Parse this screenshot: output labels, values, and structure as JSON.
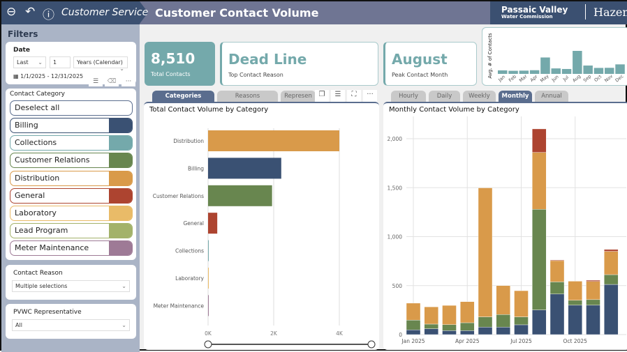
{
  "header": {
    "breadcrumb": "Customer Service",
    "title": "Customer Contact Volume",
    "logo_text": "Passaic Valley",
    "logo_sub": "Water Commission",
    "partner": "Hazen"
  },
  "filters": {
    "title": "Filters",
    "date": {
      "label": "Date",
      "relative": "Last",
      "count": "1",
      "unit": "Years (Calendar)",
      "range": "1/1/2025 - 12/31/2025"
    },
    "category": {
      "label": "Contact Category",
      "deselect": "Deselect all",
      "items": [
        {
          "label": "Billing",
          "color": "#3a5173"
        },
        {
          "label": "Collections",
          "color": "#74a9ab"
        },
        {
          "label": "Customer Relations",
          "color": "#68864f"
        },
        {
          "label": "Distribution",
          "color": "#d99a4a"
        },
        {
          "label": "General",
          "color": "#ad4430"
        },
        {
          "label": "Laboratory",
          "color": "#e9bb68"
        },
        {
          "label": "Lead Program",
          "color": "#a3b26a"
        },
        {
          "label": "Meter Maintenance",
          "color": "#9e7a96"
        }
      ]
    },
    "reason": {
      "label": "Contact Reason",
      "value": "Multiple selections"
    },
    "rep": {
      "label": "PVWC Representative",
      "value": "All"
    }
  },
  "kpis": [
    {
      "value": "8,510",
      "caption": "Total Contacts"
    },
    {
      "value": "Dead Line",
      "caption": "Top Contact Reason"
    },
    {
      "value": "August",
      "caption": "Peak Contact Month"
    }
  ],
  "left_tabs": [
    "Categories",
    "Reasons",
    "Represen"
  ],
  "right_tabs": [
    "Hourly",
    "Daily",
    "Weekly",
    "Monthly",
    "Annual"
  ],
  "active_left_tab": "Categories",
  "active_right_tab": "Monthly",
  "chart_data": [
    {
      "type": "bar",
      "title": "",
      "ylabel": "Avg. # of Contacts",
      "categories": [
        "Jan",
        "Feb",
        "Mar",
        "Apr",
        "May",
        "Jun",
        "Jul",
        "Aug",
        "Sep",
        "Oct",
        "Nov",
        "Dec"
      ],
      "values": [
        321,
        283,
        298,
        336,
        1498,
        500,
        448,
        2100,
        762,
        545,
        555,
        869
      ],
      "color": "#74a9ab"
    },
    {
      "type": "bar",
      "orientation": "horizontal",
      "title": "Total Contact Volume by Category",
      "categories": [
        "Distribution",
        "Billing",
        "Customer Relations",
        "General",
        "Collections",
        "Laboratory",
        "Meter Maintenance"
      ],
      "values": [
        4000,
        2230,
        1950,
        280,
        10,
        10,
        10
      ],
      "colors": [
        "#d99a4a",
        "#3a5173",
        "#68864f",
        "#ad4430",
        "#74a9ab",
        "#e9bb68",
        "#9e7a96"
      ],
      "xticks": [
        "0K",
        "2K",
        "4K"
      ],
      "xlim": [
        0,
        4000
      ],
      "grid": true
    },
    {
      "type": "bar",
      "stacked": true,
      "title": "Monthly Contact Volume by Category",
      "x": [
        "Jan 2025",
        "Feb 2025",
        "Mar 2025",
        "Apr 2025",
        "May 2025",
        "Jun 2025",
        "Jul 2025",
        "Aug 2025",
        "Sep 2025",
        "Oct 2025",
        "Nov 2025",
        "Dec 2025"
      ],
      "xticks": [
        "Jan 2025",
        "Apr 2025",
        "Jul 2025",
        "Oct 2025"
      ],
      "yticks": [
        "0",
        "500",
        "1,000",
        "1,500",
        "2,000"
      ],
      "ylim": [
        0,
        2200
      ],
      "grid": true,
      "series": [
        {
          "name": "Billing",
          "color": "#3a5173",
          "values": [
            48,
            60,
            40,
            40,
            76,
            76,
            100,
            252,
            414,
            300,
            300,
            512
          ]
        },
        {
          "name": "Customer Relations",
          "color": "#68864f",
          "values": [
            100,
            47,
            62,
            81,
            105,
            129,
            81,
            1027,
            124,
            50,
            57,
            100
          ]
        },
        {
          "name": "Distribution",
          "color": "#d99a4a",
          "values": [
            173,
            176,
            196,
            215,
            1317,
            295,
            267,
            581,
            217,
            195,
            186,
            238
          ]
        },
        {
          "name": "General",
          "color": "#ad4430",
          "values": [
            0,
            0,
            0,
            0,
            0,
            0,
            0,
            240,
            7,
            0,
            12,
            19
          ]
        }
      ]
    }
  ]
}
